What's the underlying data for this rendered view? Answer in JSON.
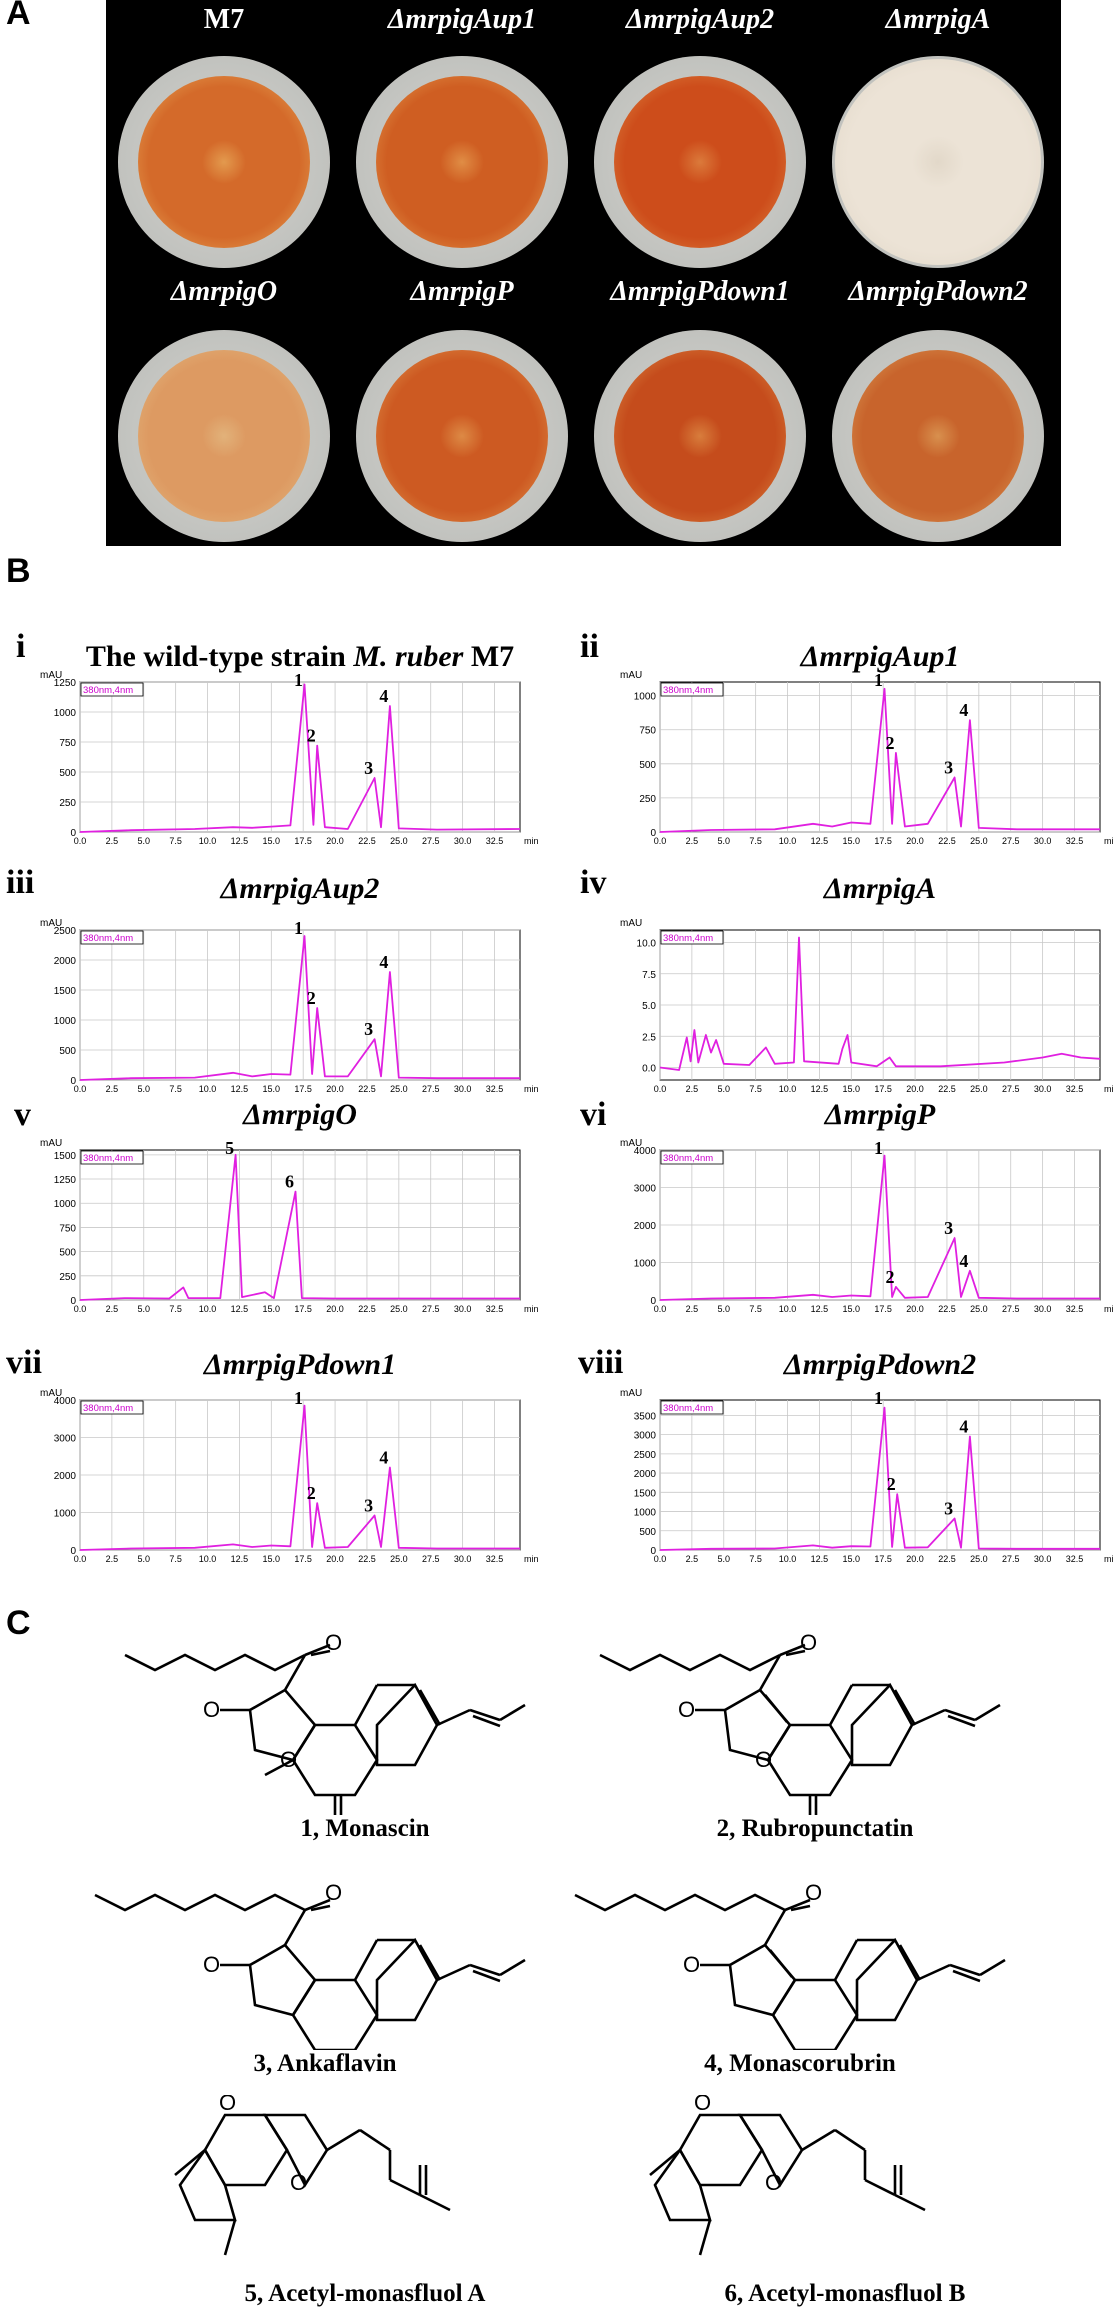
{
  "panels": {
    "a": "A",
    "b": "B",
    "c": "C"
  },
  "panel_a": {
    "strains": [
      {
        "label": "M7",
        "italic": false,
        "colony_color": "#d46a2a",
        "rim": "#e39a4e"
      },
      {
        "label": "ΔmrpigAup1",
        "italic": true,
        "colony_color": "#cf5e22",
        "rim": "#e08d45"
      },
      {
        "label": "ΔmrpigAup2",
        "italic": true,
        "colony_color": "#cd4d1b",
        "rim": "#db7a3b"
      },
      {
        "label": "ΔmrpigA",
        "italic": true,
        "colony_color": "#ece3d6",
        "rim": "#e2d8c9"
      },
      {
        "label": "ΔmrpigO",
        "italic": true,
        "colony_color": "#dd9a62",
        "rim": "#e2b27a"
      },
      {
        "label": "ΔmrpigP",
        "italic": true,
        "colony_color": "#cd5a22",
        "rim": "#dd8a45"
      },
      {
        "label": "ΔmrpigPdown1",
        "italic": true,
        "colony_color": "#c54c1c",
        "rim": "#d87d3c"
      },
      {
        "label": "ΔmrpigPdown2",
        "italic": true,
        "colony_color": "#c8642c",
        "rim": "#d8904e"
      }
    ]
  },
  "panel_b": {
    "wavelength_label": "380nm,4nm",
    "y_unit": "mAU",
    "x_unit": "min",
    "x_ticks": [
      "0.0",
      "2.5",
      "5.0",
      "7.5",
      "10.0",
      "12.5",
      "15.0",
      "17.5",
      "20.0",
      "22.5",
      "25.0",
      "27.5",
      "30.0",
      "32.5"
    ]
  },
  "chart_data": [
    {
      "type": "line",
      "roman": "i",
      "title_prefix": "The wild-type strain ",
      "title_italic": "M. ruber",
      "title_suffix": " M7",
      "ylabel": "mAU",
      "xlabel": "min",
      "ylim": [
        0,
        1250
      ],
      "y_ticks": [
        0,
        250,
        500,
        750,
        1000,
        1250
      ],
      "xlim": [
        0,
        34.5
      ],
      "series": [
        {
          "values": [
            [
              0,
              0
            ],
            [
              4,
              15
            ],
            [
              9,
              25
            ],
            [
              12,
              40
            ],
            [
              13.5,
              35
            ],
            [
              15,
              45
            ],
            [
              16.5,
              55
            ],
            [
              17.6,
              1230
            ],
            [
              18.3,
              60
            ],
            [
              18.6,
              720
            ],
            [
              19.2,
              40
            ],
            [
              21,
              25
            ],
            [
              23.1,
              450
            ],
            [
              23.6,
              40
            ],
            [
              24.3,
              1050
            ],
            [
              25,
              30
            ],
            [
              28,
              20
            ],
            [
              34.5,
              25
            ]
          ]
        }
      ],
      "peaks": [
        {
          "label": "1",
          "x": 17.6,
          "y": 1230
        },
        {
          "label": "2",
          "x": 18.6,
          "y": 720
        },
        {
          "label": "3",
          "x": 23.1,
          "y": 450
        },
        {
          "label": "4",
          "x": 24.3,
          "y": 1050
        }
      ]
    },
    {
      "type": "line",
      "roman": "ii",
      "title_italic": "ΔmrpigAup1",
      "ylabel": "mAU",
      "xlabel": "min",
      "ylim": [
        0,
        1100
      ],
      "y_ticks": [
        0,
        250,
        500,
        750,
        1000
      ],
      "xlim": [
        0,
        34.5
      ],
      "series": [
        {
          "values": [
            [
              0,
              0
            ],
            [
              4,
              15
            ],
            [
              9,
              20
            ],
            [
              12,
              60
            ],
            [
              13.5,
              40
            ],
            [
              15,
              70
            ],
            [
              16.5,
              60
            ],
            [
              17.6,
              1050
            ],
            [
              18.2,
              60
            ],
            [
              18.5,
              580
            ],
            [
              19.2,
              40
            ],
            [
              21,
              60
            ],
            [
              23.1,
              400
            ],
            [
              23.6,
              40
            ],
            [
              24.3,
              820
            ],
            [
              25,
              30
            ],
            [
              28,
              20
            ],
            [
              34.5,
              20
            ]
          ]
        }
      ],
      "peaks": [
        {
          "label": "1",
          "x": 17.6,
          "y": 1050
        },
        {
          "label": "2",
          "x": 18.5,
          "y": 580
        },
        {
          "label": "3",
          "x": 23.1,
          "y": 400
        },
        {
          "label": "4",
          "x": 24.3,
          "y": 820
        }
      ]
    },
    {
      "type": "line",
      "roman": "iii",
      "title_italic": "ΔmrpigAup2",
      "ylabel": "mAU",
      "xlabel": "min",
      "ylim": [
        0,
        2500
      ],
      "y_ticks": [
        0,
        500,
        1000,
        1500,
        2000,
        2500
      ],
      "xlim": [
        0,
        34.5
      ],
      "series": [
        {
          "values": [
            [
              0,
              0
            ],
            [
              4,
              30
            ],
            [
              9,
              40
            ],
            [
              12,
              120
            ],
            [
              13.5,
              60
            ],
            [
              15,
              100
            ],
            [
              16.5,
              90
            ],
            [
              17.6,
              2400
            ],
            [
              18.2,
              100
            ],
            [
              18.6,
              1200
            ],
            [
              19.2,
              60
            ],
            [
              21,
              60
            ],
            [
              23.1,
              680
            ],
            [
              23.6,
              60
            ],
            [
              24.3,
              1800
            ],
            [
              25,
              40
            ],
            [
              28,
              30
            ],
            [
              34.5,
              30
            ]
          ]
        }
      ],
      "peaks": [
        {
          "label": "1",
          "x": 17.6,
          "y": 2400
        },
        {
          "label": "2",
          "x": 18.6,
          "y": 1200
        },
        {
          "label": "3",
          "x": 23.1,
          "y": 680
        },
        {
          "label": "4",
          "x": 24.3,
          "y": 1800
        }
      ]
    },
    {
      "type": "line",
      "roman": "iv",
      "title_italic": "ΔmrpigA",
      "ylabel": "mAU",
      "xlabel": "min",
      "ylim": [
        -1,
        11
      ],
      "y_ticks": [
        0.0,
        2.5,
        5.0,
        7.5,
        10.0
      ],
      "xlim": [
        0,
        34.5
      ],
      "series": [
        {
          "values": [
            [
              0,
              0
            ],
            [
              1.5,
              -0.2
            ],
            [
              2.1,
              2.4
            ],
            [
              2.4,
              0.5
            ],
            [
              2.7,
              3.0
            ],
            [
              3.0,
              0.4
            ],
            [
              3.6,
              2.6
            ],
            [
              4.0,
              1.2
            ],
            [
              4.4,
              2.2
            ],
            [
              5.0,
              0.3
            ],
            [
              7,
              0.2
            ],
            [
              8.3,
              1.6
            ],
            [
              9.0,
              0.3
            ],
            [
              10.5,
              0.4
            ],
            [
              10.9,
              10.4
            ],
            [
              11.3,
              0.5
            ],
            [
              14.0,
              0.3
            ],
            [
              14.3,
              1.5
            ],
            [
              14.7,
              2.6
            ],
            [
              15.0,
              0.4
            ],
            [
              17,
              0.1
            ],
            [
              18,
              0.8
            ],
            [
              18.5,
              0.1
            ],
            [
              22,
              0.1
            ],
            [
              27,
              0.4
            ],
            [
              30,
              0.8
            ],
            [
              31.5,
              1.1
            ],
            [
              33,
              0.8
            ],
            [
              34.5,
              0.7
            ]
          ]
        }
      ],
      "peaks": []
    },
    {
      "type": "line",
      "roman": "v",
      "title_italic": "ΔmrpigO",
      "ylabel": "mAU",
      "xlabel": "min",
      "ylim": [
        0,
        1550
      ],
      "y_ticks": [
        0,
        250,
        500,
        750,
        1000,
        1250,
        1500
      ],
      "xlim": [
        0,
        34.5
      ],
      "series": [
        {
          "values": [
            [
              0,
              0
            ],
            [
              3.5,
              20
            ],
            [
              7,
              15
            ],
            [
              8.1,
              130
            ],
            [
              8.5,
              20
            ],
            [
              11,
              20
            ],
            [
              12.2,
              1500
            ],
            [
              12.7,
              30
            ],
            [
              14.5,
              80
            ],
            [
              15.2,
              20
            ],
            [
              16.9,
              1120
            ],
            [
              17.4,
              20
            ],
            [
              20,
              15
            ],
            [
              34.5,
              15
            ]
          ]
        }
      ],
      "peaks": [
        {
          "label": "5",
          "x": 12.2,
          "y": 1500
        },
        {
          "label": "6",
          "x": 16.9,
          "y": 1120
        }
      ]
    },
    {
      "type": "line",
      "roman": "vi",
      "title_italic": "ΔmrpigP",
      "ylabel": "mAU",
      "xlabel": "min",
      "ylim": [
        0,
        4000
      ],
      "y_ticks": [
        0,
        1000,
        2000,
        3000,
        4000
      ],
      "xlim": [
        0,
        34.5
      ],
      "series": [
        {
          "values": [
            [
              0,
              0
            ],
            [
              4,
              40
            ],
            [
              9,
              60
            ],
            [
              12,
              140
            ],
            [
              13.5,
              80
            ],
            [
              15,
              120
            ],
            [
              16.5,
              100
            ],
            [
              17.6,
              3850
            ],
            [
              18.2,
              80
            ],
            [
              18.5,
              350
            ],
            [
              19.2,
              60
            ],
            [
              21,
              80
            ],
            [
              23.1,
              1650
            ],
            [
              23.6,
              80
            ],
            [
              24.3,
              780
            ],
            [
              25,
              60
            ],
            [
              28,
              40
            ],
            [
              34.5,
              40
            ]
          ]
        }
      ],
      "peaks": [
        {
          "label": "1",
          "x": 17.6,
          "y": 3850
        },
        {
          "label": "2",
          "x": 18.5,
          "y": 350
        },
        {
          "label": "3",
          "x": 23.1,
          "y": 1650
        },
        {
          "label": "4",
          "x": 24.3,
          "y": 780
        }
      ]
    },
    {
      "type": "line",
      "roman": "vii",
      "title_italic": "ΔmrpigPdown1",
      "ylabel": "mAU",
      "xlabel": "min",
      "ylim": [
        0,
        4000
      ],
      "y_ticks": [
        0,
        1000,
        2000,
        3000,
        4000
      ],
      "xlim": [
        0,
        34.5
      ],
      "series": [
        {
          "values": [
            [
              0,
              0
            ],
            [
              4,
              40
            ],
            [
              9,
              60
            ],
            [
              12,
              150
            ],
            [
              13.5,
              80
            ],
            [
              15,
              120
            ],
            [
              16.5,
              100
            ],
            [
              17.6,
              3850
            ],
            [
              18.2,
              80
            ],
            [
              18.6,
              1250
            ],
            [
              19.2,
              60
            ],
            [
              21,
              80
            ],
            [
              23.1,
              920
            ],
            [
              23.6,
              80
            ],
            [
              24.3,
              2200
            ],
            [
              25,
              60
            ],
            [
              28,
              40
            ],
            [
              34.5,
              40
            ]
          ]
        }
      ],
      "peaks": [
        {
          "label": "1",
          "x": 17.6,
          "y": 3850
        },
        {
          "label": "2",
          "x": 18.6,
          "y": 1250
        },
        {
          "label": "3",
          "x": 23.1,
          "y": 920
        },
        {
          "label": "4",
          "x": 24.3,
          "y": 2200
        }
      ]
    },
    {
      "type": "line",
      "roman": "viii",
      "title_italic": "ΔmrpigPdown2",
      "ylabel": "mAU",
      "xlabel": "min",
      "ylim": [
        0,
        3900
      ],
      "y_ticks": [
        0,
        500,
        1000,
        1500,
        2000,
        2500,
        3000,
        3500
      ],
      "xlim": [
        0,
        34.5
      ],
      "series": [
        {
          "values": [
            [
              0,
              0
            ],
            [
              4,
              30
            ],
            [
              9,
              40
            ],
            [
              12,
              120
            ],
            [
              13.5,
              60
            ],
            [
              15,
              100
            ],
            [
              16.5,
              90
            ],
            [
              17.6,
              3700
            ],
            [
              18.2,
              80
            ],
            [
              18.6,
              1450
            ],
            [
              19.2,
              60
            ],
            [
              21,
              70
            ],
            [
              23.1,
              820
            ],
            [
              23.6,
              60
            ],
            [
              24.3,
              2950
            ],
            [
              25,
              40
            ],
            [
              28,
              30
            ],
            [
              34.5,
              30
            ]
          ]
        }
      ],
      "peaks": [
        {
          "label": "1",
          "x": 17.6,
          "y": 3700
        },
        {
          "label": "2",
          "x": 18.6,
          "y": 1450
        },
        {
          "label": "3",
          "x": 23.1,
          "y": 820
        },
        {
          "label": "4",
          "x": 24.3,
          "y": 2950
        }
      ]
    }
  ],
  "panel_c": {
    "compounds": [
      {
        "label": "1, Monascin"
      },
      {
        "label": "2, Rubropunctatin"
      },
      {
        "label": "3, Ankaflavin"
      },
      {
        "label": "4, Monascorubrin"
      },
      {
        "label": "5, Acetyl-monasfluol A"
      },
      {
        "label": "6, Acetyl-monasfluol B"
      }
    ],
    "atom_o": "O"
  },
  "colors": {
    "trace": "#e020e0",
    "trace_fill": "#f07a30",
    "grid": "#c8c8c8",
    "label": "#cc00cc"
  }
}
